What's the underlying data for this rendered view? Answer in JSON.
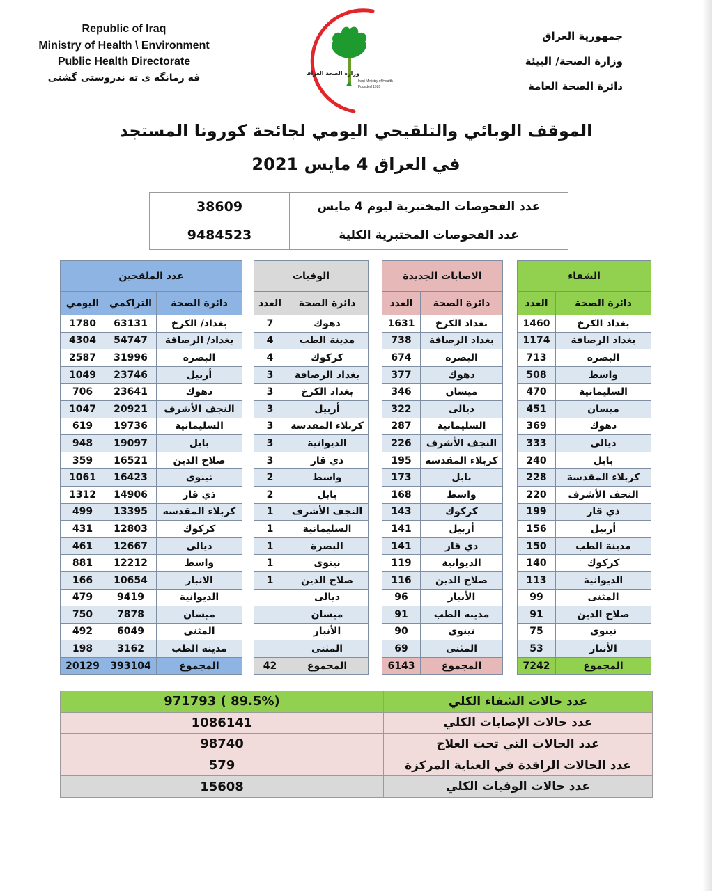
{
  "header": {
    "english": [
      "Republic of Iraq",
      "Ministry of Health \\ Environment",
      "Public Health Directorate",
      "فه رمانگه ی ته ندروستی گشتی"
    ],
    "arabic": [
      "جمهورية العراق",
      "وزارة الصحة/ البيئة",
      "دائرة الصحة العامة"
    ],
    "logo_text": [
      "وزارة الصحة العراقية",
      "Iraqi Ministry of Health",
      "Founded 1920"
    ]
  },
  "title": {
    "line1": "الموقف الوبائي والتلقيحي اليومي لجائحة كورونا المستجد",
    "line2": "في العراق  4  مايس 2021"
  },
  "tests": [
    {
      "label": "عدد الفحوصات المختبرية  ليوم 4 مايس",
      "value": "38609"
    },
    {
      "label": "عدد الفحوصات المختبرية الكلية",
      "value": "9484523"
    }
  ],
  "colors": {
    "recovered": "#92d050",
    "cases": "#e6b8b7",
    "deaths": "#d9d9d9",
    "vaccinated": "#8db4e2",
    "row_alt": "#dce6f1",
    "summary_pink": "#f2dcdb"
  },
  "recovered": {
    "title": "الشفاء",
    "col_name": "دائرة الصحة",
    "col_count": "العدد",
    "rows": [
      [
        "بغداد الكرخ",
        "1460"
      ],
      [
        "بغداد الرصافة",
        "1174"
      ],
      [
        "البصرة",
        "713"
      ],
      [
        "واسط",
        "508"
      ],
      [
        "السليمانية",
        "470"
      ],
      [
        "ميسان",
        "451"
      ],
      [
        "دهوك",
        "369"
      ],
      [
        "ديالى",
        "333"
      ],
      [
        "بابل",
        "240"
      ],
      [
        "كربلاء المقدسة",
        "228"
      ],
      [
        "النجف الأشرف",
        "220"
      ],
      [
        "ذي قار",
        "199"
      ],
      [
        "أربيل",
        "156"
      ],
      [
        "مدينة الطب",
        "150"
      ],
      [
        "كركوك",
        "140"
      ],
      [
        "الديوانية",
        "113"
      ],
      [
        "المثنى",
        "99"
      ],
      [
        "صلاح الدين",
        "91"
      ],
      [
        "نينوى",
        "75"
      ],
      [
        "الأنبار",
        "53"
      ]
    ],
    "total_label": "المجموع",
    "total": "7242"
  },
  "cases": {
    "title": "الاصابات الجديدة",
    "col_name": "دائرة الصحة",
    "col_count": "العدد",
    "rows": [
      [
        "بغداد الكرخ",
        "1631"
      ],
      [
        "بغداد الرصافة",
        "738"
      ],
      [
        "البصرة",
        "674"
      ],
      [
        "دهوك",
        "377"
      ],
      [
        "ميسان",
        "346"
      ],
      [
        "ديالى",
        "322"
      ],
      [
        "السليمانية",
        "287"
      ],
      [
        "النجف الأشرف",
        "226"
      ],
      [
        "كربلاء المقدسة",
        "195"
      ],
      [
        "بابل",
        "173"
      ],
      [
        "واسط",
        "168"
      ],
      [
        "كركوك",
        "143"
      ],
      [
        "أربيل",
        "141"
      ],
      [
        "ذي قار",
        "141"
      ],
      [
        "الديوانية",
        "119"
      ],
      [
        "صلاح الدين",
        "116"
      ],
      [
        "الأنبار",
        "96"
      ],
      [
        "مدينة الطب",
        "91"
      ],
      [
        "نينوى",
        "90"
      ],
      [
        "المثنى",
        "69"
      ]
    ],
    "total_label": "المجموع",
    "total": "6143"
  },
  "deaths": {
    "title": "الوفيات",
    "col_name": "دائرة الصحة",
    "col_count": "العدد",
    "rows": [
      [
        "دهوك",
        "7"
      ],
      [
        "مدينة الطب",
        "4"
      ],
      [
        "كركوك",
        "4"
      ],
      [
        "بغداد الرصافة",
        "3"
      ],
      [
        "بغداد الكرخ",
        "3"
      ],
      [
        "أربيل",
        "3"
      ],
      [
        "كربلاء المقدسة",
        "3"
      ],
      [
        "الديوانية",
        "3"
      ],
      [
        "ذي قار",
        "3"
      ],
      [
        "واسط",
        "2"
      ],
      [
        "بابل",
        "2"
      ],
      [
        "النجف الأشرف",
        "1"
      ],
      [
        "السليمانية",
        "1"
      ],
      [
        "البصرة",
        "1"
      ],
      [
        "نينوى",
        "1"
      ],
      [
        "صلاح الدين",
        "1"
      ],
      [
        "ديالى",
        ""
      ],
      [
        "ميسان",
        ""
      ],
      [
        "الأنبار",
        ""
      ],
      [
        "المثنى",
        ""
      ]
    ],
    "total_label": "المجموع",
    "total": "42"
  },
  "vaccinated": {
    "title": "عدد الملقحين",
    "col_name": "دائرة الصحة",
    "col_cumulative": "التراكمي",
    "col_daily": "اليومي",
    "rows": [
      [
        "بغداد/ الكرخ",
        "63131",
        "1780"
      ],
      [
        "بغداد/ الرصافة",
        "54747",
        "4304"
      ],
      [
        "البصرة",
        "31996",
        "2587"
      ],
      [
        "أربيل",
        "23746",
        "1049"
      ],
      [
        "دهوك",
        "23641",
        "706"
      ],
      [
        "النجف الأشرف",
        "20921",
        "1047"
      ],
      [
        "السليمانية",
        "19736",
        "619"
      ],
      [
        "بابل",
        "19097",
        "948"
      ],
      [
        "صلاح الدين",
        "16521",
        "359"
      ],
      [
        "نينوى",
        "16423",
        "1061"
      ],
      [
        "ذي قار",
        "14906",
        "1312"
      ],
      [
        "كربلاء المقدسة",
        "13395",
        "499"
      ],
      [
        "كركوك",
        "12803",
        "431"
      ],
      [
        "ديالى",
        "12667",
        "461"
      ],
      [
        "واسط",
        "12212",
        "881"
      ],
      [
        "الانبار",
        "10654",
        "166"
      ],
      [
        "الديوانية",
        "9419",
        "479"
      ],
      [
        "ميسان",
        "7878",
        "750"
      ],
      [
        "المثنى",
        "6049",
        "492"
      ],
      [
        "مدينة الطب",
        "3162",
        "198"
      ]
    ],
    "total_label": "المجموع",
    "total_cumulative": "393104",
    "total_daily": "20129"
  },
  "summary": [
    {
      "label": "عدد حالات الشفاء الكلي",
      "value": "971793 ( 89.5%)",
      "color": "#92d050"
    },
    {
      "label": "عدد حالات الإصابات الكلي",
      "value": "1086141",
      "color": "#f2dcdb"
    },
    {
      "label": "عدد الحالات التي تحت العلاج",
      "value": "98740",
      "color": "#f2dcdb"
    },
    {
      "label": "عدد الحالات الراقدة في العناية المركزة",
      "value": "579",
      "color": "#f2dcdb"
    },
    {
      "label": "عدد حالات الوفيات الكلي",
      "value": "15608",
      "color": "#d9d9d9"
    }
  ]
}
